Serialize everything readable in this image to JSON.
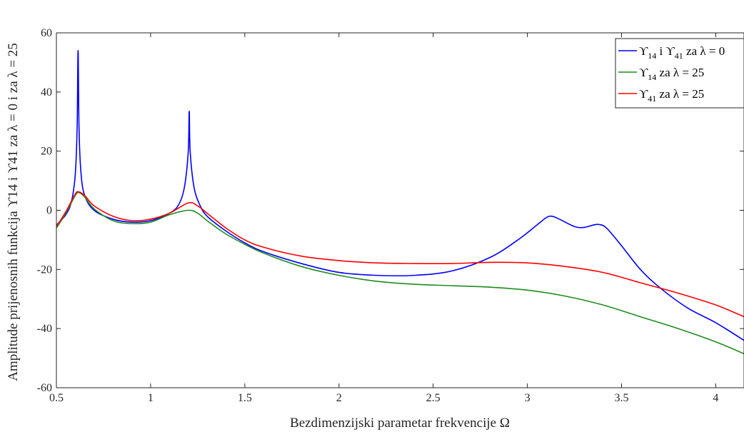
{
  "chart_data": {
    "type": "line",
    "xlabel": "Bezdimenzijski parametar frekvencije Ω",
    "ylabel": "Amplitude prijenosnih funkcija ϒ14 i ϒ41 za λ = 0 i za λ = 25",
    "xlim": [
      0.5,
      4.15
    ],
    "ylim": [
      -60,
      60
    ],
    "xticks": [
      0.5,
      1,
      1.5,
      2,
      2.5,
      3,
      3.5,
      4
    ],
    "xtick_labels": [
      "0.5",
      "1",
      "1.5",
      "2",
      "2.5",
      "3",
      "3.5",
      "4"
    ],
    "yticks": [
      -60,
      -40,
      -20,
      0,
      20,
      40,
      60
    ],
    "ytick_labels": [
      "-60",
      "-40",
      "-20",
      "0",
      "20",
      "40",
      "60"
    ],
    "grid": false,
    "legend_position": "top-right",
    "series": [
      {
        "name": "ϒ14 i ϒ41 za λ = 0",
        "color": "#0000ff",
        "points": [
          [
            0.5,
            -5
          ],
          [
            0.55,
            -1.5
          ],
          [
            0.58,
            3
          ],
          [
            0.6,
            12
          ],
          [
            0.61,
            28
          ],
          [
            0.615,
            54
          ],
          [
            0.62,
            28
          ],
          [
            0.63,
            13
          ],
          [
            0.65,
            5
          ],
          [
            0.7,
            0
          ],
          [
            0.8,
            -3
          ],
          [
            0.9,
            -4
          ],
          [
            1.0,
            -3.5
          ],
          [
            1.1,
            -1
          ],
          [
            1.15,
            2
          ],
          [
            1.18,
            8
          ],
          [
            1.2,
            20
          ],
          [
            1.205,
            33.5
          ],
          [
            1.21,
            20
          ],
          [
            1.23,
            8
          ],
          [
            1.26,
            2
          ],
          [
            1.3,
            -2
          ],
          [
            1.4,
            -7
          ],
          [
            1.5,
            -11
          ],
          [
            1.6,
            -14
          ],
          [
            1.8,
            -18
          ],
          [
            2.0,
            -21
          ],
          [
            2.2,
            -22
          ],
          [
            2.4,
            -22
          ],
          [
            2.6,
            -20.5
          ],
          [
            2.8,
            -16
          ],
          [
            2.95,
            -10
          ],
          [
            3.05,
            -5
          ],
          [
            3.1,
            -2.5
          ],
          [
            3.13,
            -2
          ],
          [
            3.17,
            -3
          ],
          [
            3.25,
            -5.5
          ],
          [
            3.3,
            -5.8
          ],
          [
            3.35,
            -5
          ],
          [
            3.38,
            -4.8
          ],
          [
            3.42,
            -6
          ],
          [
            3.5,
            -12
          ],
          [
            3.6,
            -20
          ],
          [
            3.7,
            -26
          ],
          [
            3.85,
            -33
          ],
          [
            4.0,
            -38
          ],
          [
            4.15,
            -44
          ]
        ]
      },
      {
        "name": "ϒ14 za λ = 25",
        "color": "#1e8c1e",
        "points": [
          [
            0.5,
            -6
          ],
          [
            0.55,
            -1
          ],
          [
            0.6,
            5
          ],
          [
            0.62,
            6
          ],
          [
            0.65,
            4.5
          ],
          [
            0.7,
            0.5
          ],
          [
            0.8,
            -3.5
          ],
          [
            0.9,
            -4.5
          ],
          [
            1.0,
            -4
          ],
          [
            1.1,
            -1.5
          ],
          [
            1.2,
            0
          ],
          [
            1.25,
            -1
          ],
          [
            1.3,
            -3.5
          ],
          [
            1.4,
            -8
          ],
          [
            1.5,
            -11.5
          ],
          [
            1.6,
            -14.5
          ],
          [
            1.8,
            -19
          ],
          [
            2.0,
            -22
          ],
          [
            2.2,
            -24
          ],
          [
            2.4,
            -25
          ],
          [
            2.6,
            -25.5
          ],
          [
            2.8,
            -26
          ],
          [
            3.0,
            -27
          ],
          [
            3.2,
            -29
          ],
          [
            3.4,
            -32
          ],
          [
            3.6,
            -36
          ],
          [
            3.8,
            -40
          ],
          [
            4.0,
            -44.5
          ],
          [
            4.15,
            -48.5
          ]
        ]
      },
      {
        "name": "ϒ41 za λ = 25",
        "color": "#ff0000",
        "points": [
          [
            0.5,
            -5.5
          ],
          [
            0.55,
            -0.5
          ],
          [
            0.6,
            5.5
          ],
          [
            0.62,
            6.2
          ],
          [
            0.65,
            5
          ],
          [
            0.7,
            1.5
          ],
          [
            0.8,
            -2
          ],
          [
            0.9,
            -3.5
          ],
          [
            1.0,
            -3
          ],
          [
            1.1,
            -1
          ],
          [
            1.2,
            2.5
          ],
          [
            1.25,
            1.5
          ],
          [
            1.3,
            -1
          ],
          [
            1.4,
            -6
          ],
          [
            1.5,
            -10
          ],
          [
            1.6,
            -12.5
          ],
          [
            1.8,
            -15.5
          ],
          [
            2.0,
            -17
          ],
          [
            2.2,
            -17.8
          ],
          [
            2.4,
            -18
          ],
          [
            2.6,
            -18
          ],
          [
            2.8,
            -17.6
          ],
          [
            3.0,
            -17.8
          ],
          [
            3.2,
            -19
          ],
          [
            3.4,
            -21
          ],
          [
            3.6,
            -24.5
          ],
          [
            3.8,
            -28
          ],
          [
            4.0,
            -32
          ],
          [
            4.15,
            -36
          ]
        ]
      }
    ]
  }
}
